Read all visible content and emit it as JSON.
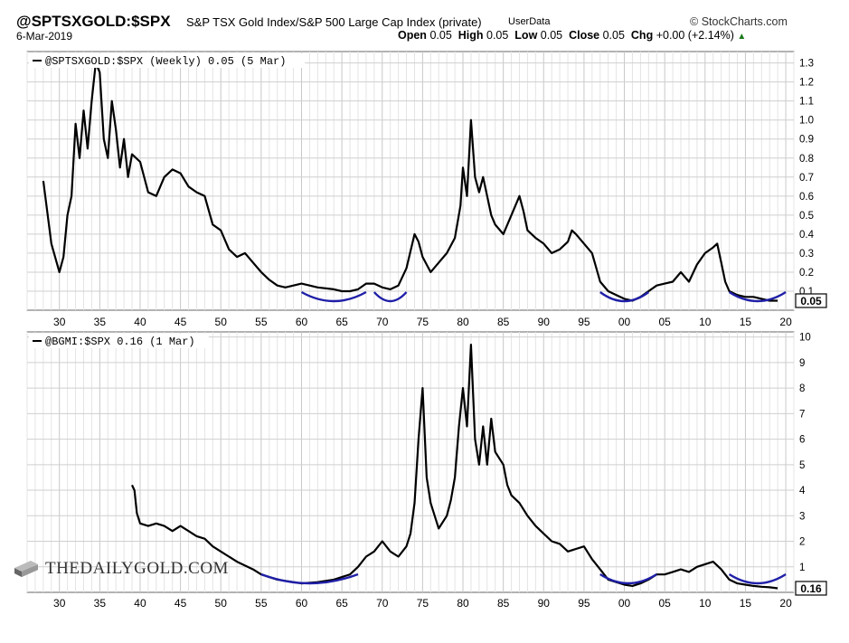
{
  "header": {
    "symbol": "@SPTSXGOLD:$SPX",
    "description": "S&P TSX Gold Index/S&P 500 Large Cap Index (private)",
    "userdata": "UserData",
    "brand": "StockCharts.com",
    "date": "6-Mar-2019",
    "open_label": "Open",
    "open": "0.05",
    "high_label": "High",
    "high": "0.05",
    "low_label": "Low",
    "low": "0.05",
    "close_label": "Close",
    "close": "0.05",
    "chg_label": "Chg",
    "chg": "+0.00 (+2.14%)"
  },
  "watermark": "THEDAILYGOLD.COM",
  "chart_data": [
    {
      "type": "line",
      "legend": "@SPTSXGOLD:$SPX (Weekly) 0.05 (5 Mar)",
      "last_value_label": "0.05",
      "line_color": "#000000",
      "arc_color": "#1f1fa8",
      "xlim": [
        1926,
        2021
      ],
      "ylim": [
        0,
        1.36
      ],
      "x_ticks": [
        1930,
        1935,
        1940,
        1945,
        1950,
        1955,
        1960,
        1965,
        1970,
        1975,
        1980,
        1985,
        1990,
        1995,
        2000,
        2005,
        2010,
        2015,
        2020
      ],
      "x_tick_labels": [
        "30",
        "35",
        "40",
        "45",
        "50",
        "55",
        "60",
        "65",
        "70",
        "75",
        "80",
        "85",
        "90",
        "95",
        "00",
        "05",
        "10",
        "15",
        "20"
      ],
      "y_ticks": [
        0.1,
        0.2,
        0.3,
        0.4,
        0.5,
        0.6,
        0.7,
        0.8,
        0.9,
        1.0,
        1.1,
        1.2,
        1.3
      ],
      "y_tick_labels": [
        "0.1",
        "0.2",
        "0.3",
        "0.4",
        "0.5",
        "0.6",
        "0.7",
        "0.8",
        "0.9",
        "1.0",
        "1.1",
        "1.2",
        "1.3"
      ],
      "series": [
        {
          "x": [
            1928,
            1929,
            1930,
            1930.5,
            1931,
            1931.5,
            1932,
            1932.5,
            1933,
            1933.5,
            1934,
            1934.5,
            1935,
            1935.5,
            1936,
            1936.5,
            1937,
            1937.5,
            1938,
            1938.5,
            1939,
            1940,
            1941,
            1942,
            1943,
            1944,
            1945,
            1946,
            1947,
            1948,
            1949,
            1950,
            1951,
            1952,
            1953,
            1954,
            1955,
            1956,
            1957,
            1958,
            1959,
            1960,
            1962,
            1964,
            1965,
            1966,
            1967,
            1968,
            1969,
            1970,
            1971,
            1972,
            1973,
            1974,
            1974.5,
            1975,
            1976,
            1977,
            1978,
            1979,
            1979.7,
            1980,
            1980.5,
            1981,
            1981.5,
            1982,
            1982.5,
            1983,
            1983.5,
            1984,
            1985,
            1986,
            1987,
            1987.5,
            1988,
            1989,
            1990,
            1991,
            1992,
            1993,
            1993.5,
            1994,
            1995,
            1996,
            1997,
            1998,
            1999,
            2000,
            2001,
            2002,
            2003,
            2004,
            2005,
            2006,
            2007,
            2008,
            2009,
            2010,
            2011,
            2011.5,
            2012,
            2012.5,
            2013,
            2014,
            2015,
            2016,
            2017,
            2018,
            2019
          ],
          "y": [
            0.68,
            0.35,
            0.2,
            0.28,
            0.5,
            0.6,
            0.98,
            0.8,
            1.05,
            0.85,
            1.1,
            1.3,
            1.25,
            0.9,
            0.8,
            1.1,
            0.95,
            0.75,
            0.9,
            0.7,
            0.82,
            0.78,
            0.62,
            0.6,
            0.7,
            0.74,
            0.72,
            0.65,
            0.62,
            0.6,
            0.45,
            0.42,
            0.32,
            0.28,
            0.3,
            0.25,
            0.2,
            0.16,
            0.13,
            0.12,
            0.13,
            0.14,
            0.12,
            0.11,
            0.1,
            0.1,
            0.11,
            0.14,
            0.14,
            0.12,
            0.11,
            0.13,
            0.22,
            0.4,
            0.36,
            0.28,
            0.2,
            0.25,
            0.3,
            0.38,
            0.55,
            0.75,
            0.6,
            1.0,
            0.7,
            0.62,
            0.7,
            0.6,
            0.5,
            0.45,
            0.4,
            0.5,
            0.6,
            0.52,
            0.42,
            0.38,
            0.35,
            0.3,
            0.32,
            0.36,
            0.42,
            0.4,
            0.35,
            0.3,
            0.15,
            0.1,
            0.08,
            0.06,
            0.05,
            0.07,
            0.1,
            0.13,
            0.14,
            0.15,
            0.2,
            0.15,
            0.24,
            0.3,
            0.33,
            0.35,
            0.25,
            0.15,
            0.1,
            0.08,
            0.07,
            0.07,
            0.06,
            0.05,
            0.05
          ]
        }
      ],
      "arcs": [
        [
          1960,
          1968
        ],
        [
          1969,
          1973
        ],
        [
          1997,
          2003
        ],
        [
          2013,
          2020
        ]
      ]
    },
    {
      "type": "line",
      "legend": "@BGMI:$SPX 0.16 (1 Mar)",
      "last_value_label": "0.16",
      "line_color": "#000000",
      "arc_color": "#1f1fa8",
      "xlim": [
        1926,
        2021
      ],
      "ylim": [
        0,
        10.2
      ],
      "x_ticks": [
        1930,
        1935,
        1940,
        1945,
        1950,
        1955,
        1960,
        1965,
        1970,
        1975,
        1980,
        1985,
        1990,
        1995,
        2000,
        2005,
        2010,
        2015,
        2020
      ],
      "x_tick_labels": [
        "30",
        "35",
        "40",
        "45",
        "50",
        "55",
        "60",
        "65",
        "70",
        "75",
        "80",
        "85",
        "90",
        "95",
        "00",
        "05",
        "10",
        "15",
        "20"
      ],
      "y_ticks": [
        1,
        2,
        3,
        4,
        5,
        6,
        7,
        8,
        9,
        10
      ],
      "y_tick_labels": [
        "1",
        "2",
        "3",
        "4",
        "5",
        "6",
        "7",
        "8",
        "9",
        "10"
      ],
      "series": [
        {
          "x": [
            1939,
            1939.3,
            1939.6,
            1940,
            1941,
            1942,
            1943,
            1944,
            1945,
            1946,
            1947,
            1948,
            1949,
            1950,
            1952,
            1954,
            1955,
            1957,
            1960,
            1962,
            1964,
            1966,
            1967,
            1968,
            1969,
            1970,
            1971,
            1972,
            1973,
            1973.5,
            1974,
            1974.5,
            1975,
            1975.5,
            1976,
            1977,
            1978,
            1978.5,
            1979,
            1979.5,
            1980,
            1980.5,
            1981,
            1981.5,
            1982,
            1982.5,
            1983,
            1983.5,
            1984,
            1985,
            1985.5,
            1986,
            1987,
            1988,
            1989,
            1990,
            1991,
            1992,
            1993,
            1994,
            1995,
            1996,
            1997,
            1998,
            1999,
            2000,
            2001,
            2002,
            2003,
            2004,
            2005,
            2006,
            2007,
            2008,
            2009,
            2010,
            2011,
            2012,
            2013,
            2014,
            2015,
            2016,
            2017,
            2018,
            2019
          ],
          "y": [
            4.2,
            4.0,
            3.1,
            2.7,
            2.6,
            2.7,
            2.6,
            2.4,
            2.6,
            2.4,
            2.2,
            2.1,
            1.8,
            1.6,
            1.2,
            0.9,
            0.7,
            0.5,
            0.35,
            0.4,
            0.5,
            0.7,
            1.0,
            1.4,
            1.6,
            2.0,
            1.6,
            1.4,
            1.8,
            2.3,
            3.5,
            6.0,
            8.0,
            4.5,
            3.5,
            2.5,
            3.0,
            3.6,
            4.5,
            6.5,
            8.0,
            6.5,
            9.7,
            6.0,
            5.0,
            6.5,
            5.0,
            6.8,
            5.5,
            5.0,
            4.2,
            3.8,
            3.5,
            3.0,
            2.6,
            2.3,
            2.0,
            1.9,
            1.6,
            1.7,
            1.8,
            1.3,
            0.9,
            0.5,
            0.4,
            0.3,
            0.25,
            0.35,
            0.5,
            0.7,
            0.7,
            0.8,
            0.9,
            0.8,
            1.0,
            1.1,
            1.2,
            0.9,
            0.5,
            0.35,
            0.3,
            0.25,
            0.22,
            0.2,
            0.16
          ]
        }
      ],
      "arcs": [
        [
          1955,
          1967
        ],
        [
          1997,
          2004
        ],
        [
          2013,
          2020
        ]
      ]
    }
  ]
}
